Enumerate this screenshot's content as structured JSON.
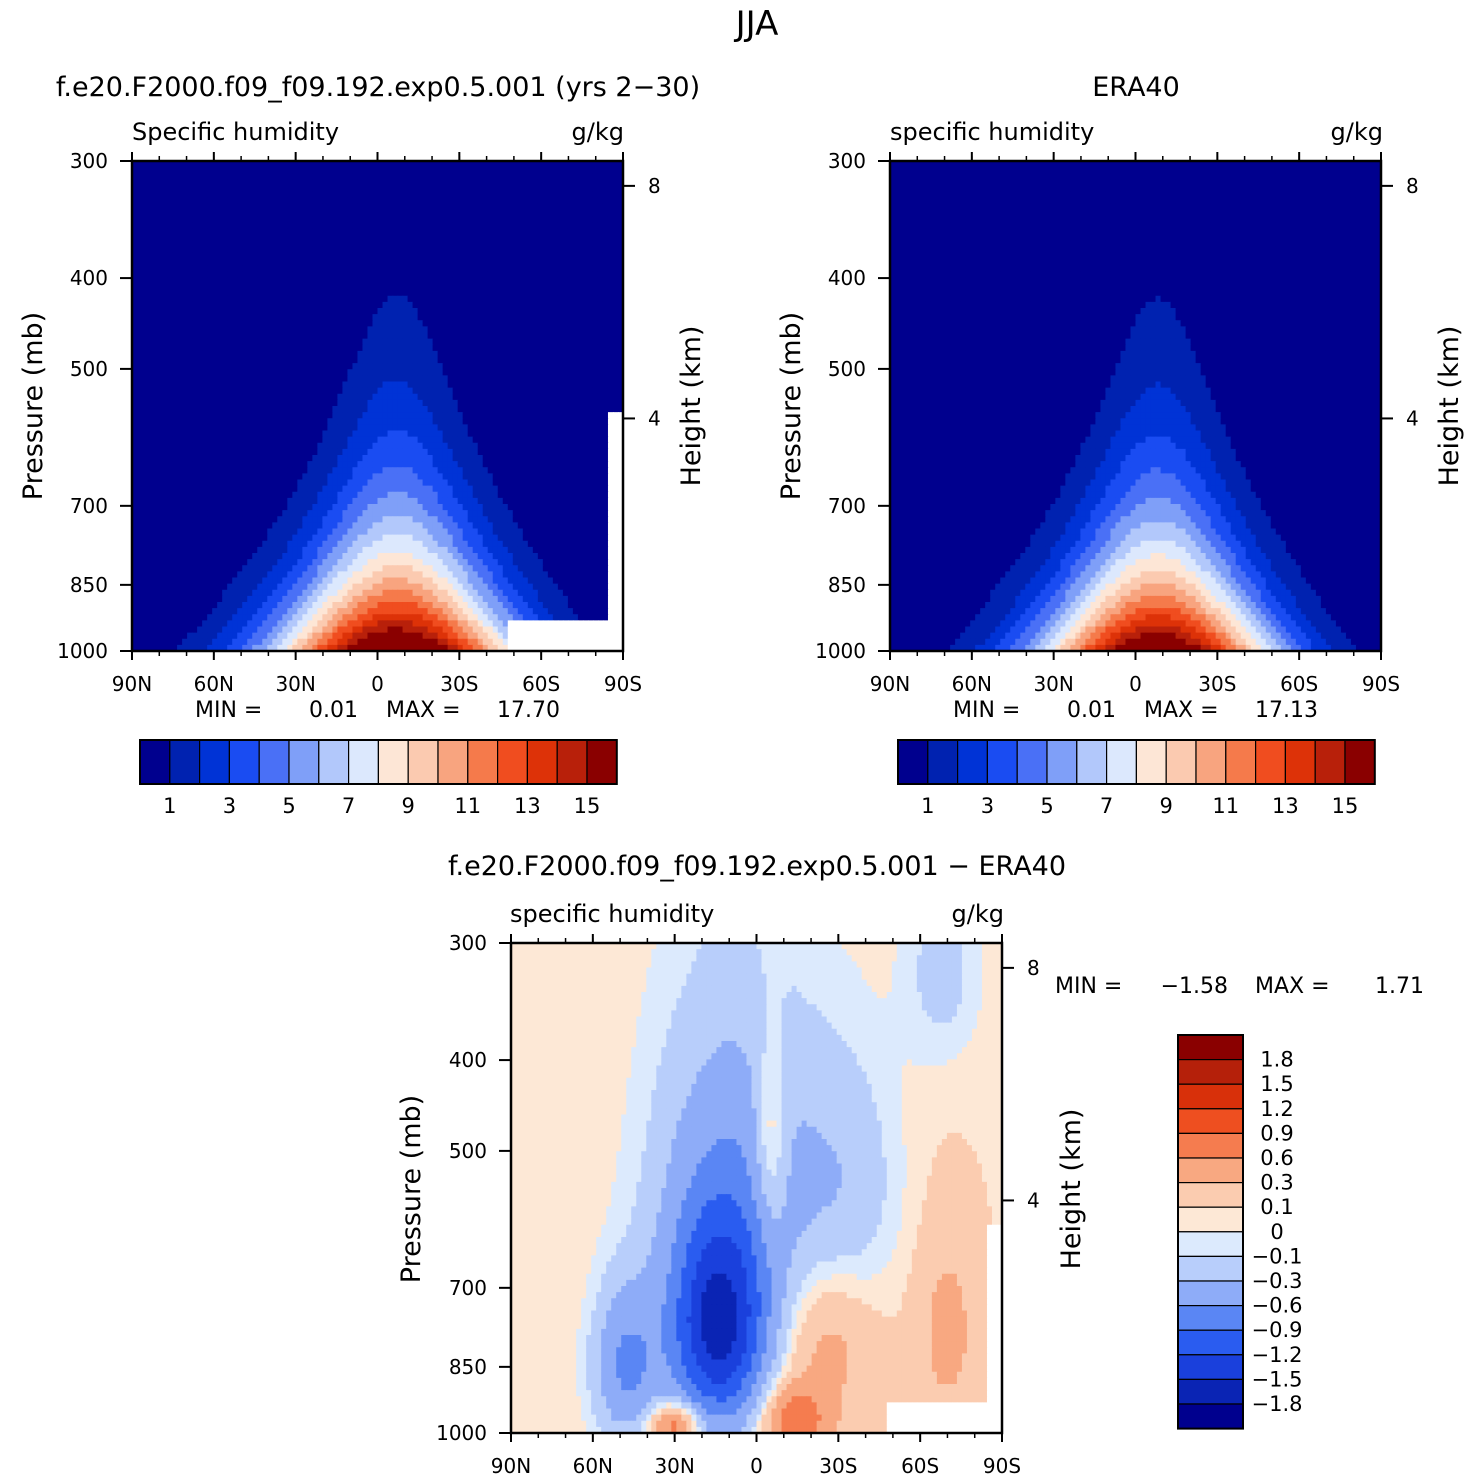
{
  "page_title": "JJA",
  "chart_data": [
    {
      "type": "heatmap",
      "title": "f.e20.F2000.f09_f09.192.exp0.5.001 (yrs 2−30)",
      "variable_label": "Specific humidity",
      "units_label": "g/kg",
      "ylabel": "Pressure (mb)",
      "ylabel_right": "Height (km)",
      "x_ticks": [
        "90N",
        "60N",
        "30N",
        "0",
        "30S",
        "60S",
        "90S"
      ],
      "y_ticks": [
        "300",
        "400",
        "500",
        "700",
        "850",
        "1000"
      ],
      "y_ticks_right": [
        "8",
        "4"
      ],
      "min_label": "MIN =",
      "min_value": "0.01",
      "max_label": "MAX =",
      "max_value": "17.70",
      "colorbar_labels": [
        "1",
        "3",
        "5",
        "7",
        "9",
        "11",
        "13",
        "15"
      ],
      "levels": [
        1,
        2,
        3,
        4,
        5,
        6,
        7,
        8,
        9,
        10,
        11,
        12,
        13,
        14,
        15
      ],
      "peak_lat": -7,
      "peak_value": 17.7,
      "missing_region": "surface below 930 mb south of 50S"
    },
    {
      "type": "heatmap",
      "title": "ERA40",
      "variable_label": "specific humidity",
      "units_label": "g/kg",
      "ylabel": "Pressure (mb)",
      "ylabel_right": "Height (km)",
      "x_ticks": [
        "90N",
        "60N",
        "30N",
        "0",
        "30S",
        "60S",
        "90S"
      ],
      "y_ticks": [
        "300",
        "400",
        "500",
        "700",
        "850",
        "1000"
      ],
      "y_ticks_right": [
        "8",
        "4"
      ],
      "min_label": "MIN =",
      "min_value": "0.01",
      "max_label": "MAX =",
      "max_value": "17.13",
      "colorbar_labels": [
        "1",
        "3",
        "5",
        "7",
        "9",
        "11",
        "13",
        "15"
      ],
      "levels": [
        1,
        2,
        3,
        4,
        5,
        6,
        7,
        8,
        9,
        10,
        11,
        12,
        13,
        14,
        15
      ],
      "peak_lat": -8,
      "peak_value": 17.13
    },
    {
      "type": "heatmap",
      "title": "f.e20.F2000.f09_f09.192.exp0.5.001 − ERA40",
      "variable_label": "specific humidity",
      "units_label": "g/kg",
      "ylabel": "Pressure (mb)",
      "ylabel_right": "Height (km)",
      "x_ticks": [
        "90N",
        "60N",
        "30N",
        "0",
        "30S",
        "60S",
        "90S"
      ],
      "y_ticks": [
        "300",
        "400",
        "500",
        "700",
        "850",
        "1000"
      ],
      "y_ticks_right": [
        "8",
        "4"
      ],
      "min_label": "MIN =",
      "min_value": "−1.58",
      "max_label": "MAX =",
      "max_value": "1.71",
      "colorbar_labels": [
        "1.8",
        "1.5",
        "1.2",
        "0.9",
        "0.6",
        "0.3",
        "0.1",
        "0",
        "−0.1",
        "−0.3",
        "−0.6",
        "−0.9",
        "−1.2",
        "−1.5",
        "−1.8"
      ],
      "levels": [
        -1.8,
        -1.5,
        -1.2,
        -0.9,
        -0.6,
        -0.3,
        -0.1,
        0,
        0.1,
        0.3,
        0.6,
        0.9,
        1.2,
        1.5,
        1.8
      ]
    }
  ],
  "colors": {
    "seq": [
      "#00008e",
      "#0022b0",
      "#0033d6",
      "#1a4cf2",
      "#4a70f6",
      "#7f9ff8",
      "#b2c8fb",
      "#dce8fd",
      "#fde6d6",
      "#fbcab0",
      "#f8a47f",
      "#f57a4b",
      "#f04d1f",
      "#dd3208",
      "#b8200a",
      "#8a0000"
    ],
    "div": [
      "#00008e",
      "#0a24b4",
      "#1a40dc",
      "#2a5cf0",
      "#5a86f4",
      "#8eacf8",
      "#b8cefb",
      "#dceafd",
      "#fde8d6",
      "#fbccb0",
      "#f8a881",
      "#f57c4f",
      "#ee4f20",
      "#d8300a",
      "#b5200a",
      "#8a0000"
    ]
  }
}
